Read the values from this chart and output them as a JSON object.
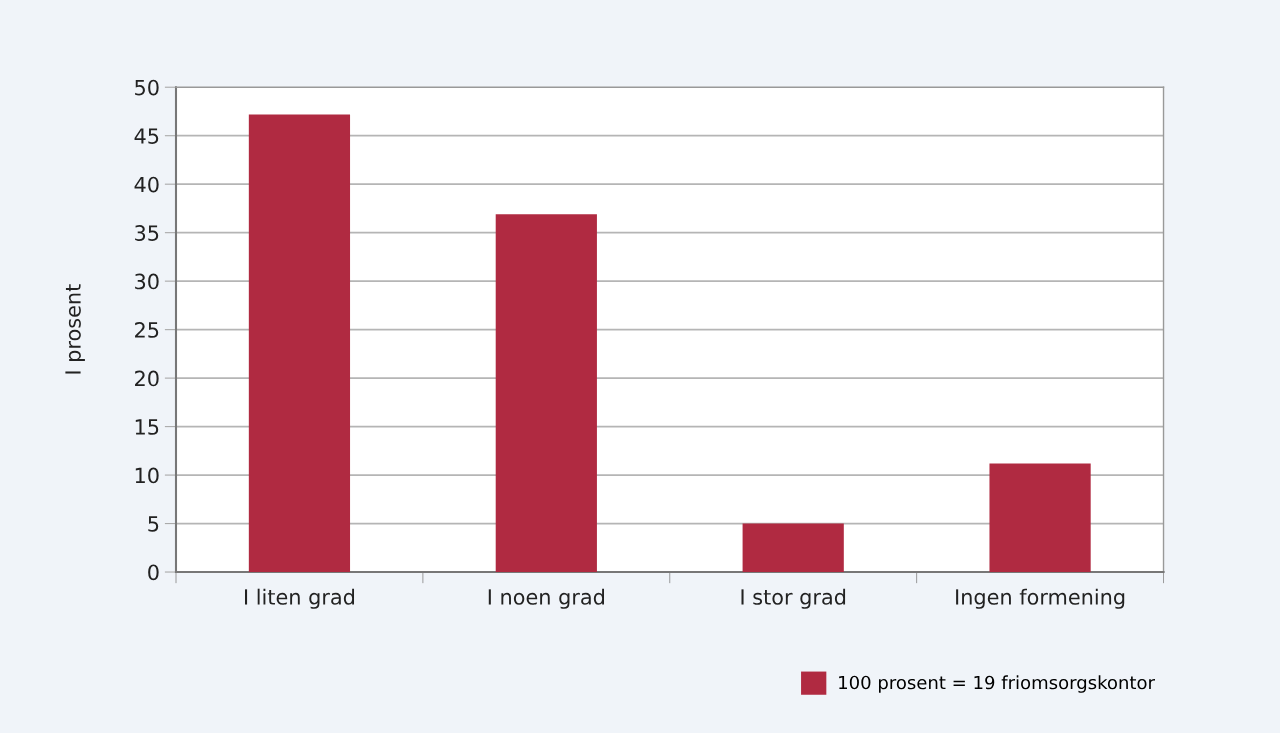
{
  "chart_data": {
    "type": "bar",
    "ylabel": "I prosent",
    "categories": [
      "I liten grad",
      "I noen grad",
      "I stor grad",
      "Ingen formening"
    ],
    "series": [
      {
        "name": "100 prosent = 19 friomsorgskontor",
        "color": "#b02a41",
        "values": [
          47.2,
          36.9,
          5.0,
          11.2
        ]
      }
    ],
    "ylim": [
      0,
      50
    ],
    "yticks": [
      0,
      5,
      10,
      15,
      20,
      25,
      30,
      35,
      40,
      45,
      50
    ],
    "grid": "y",
    "legend": "bottom right"
  }
}
